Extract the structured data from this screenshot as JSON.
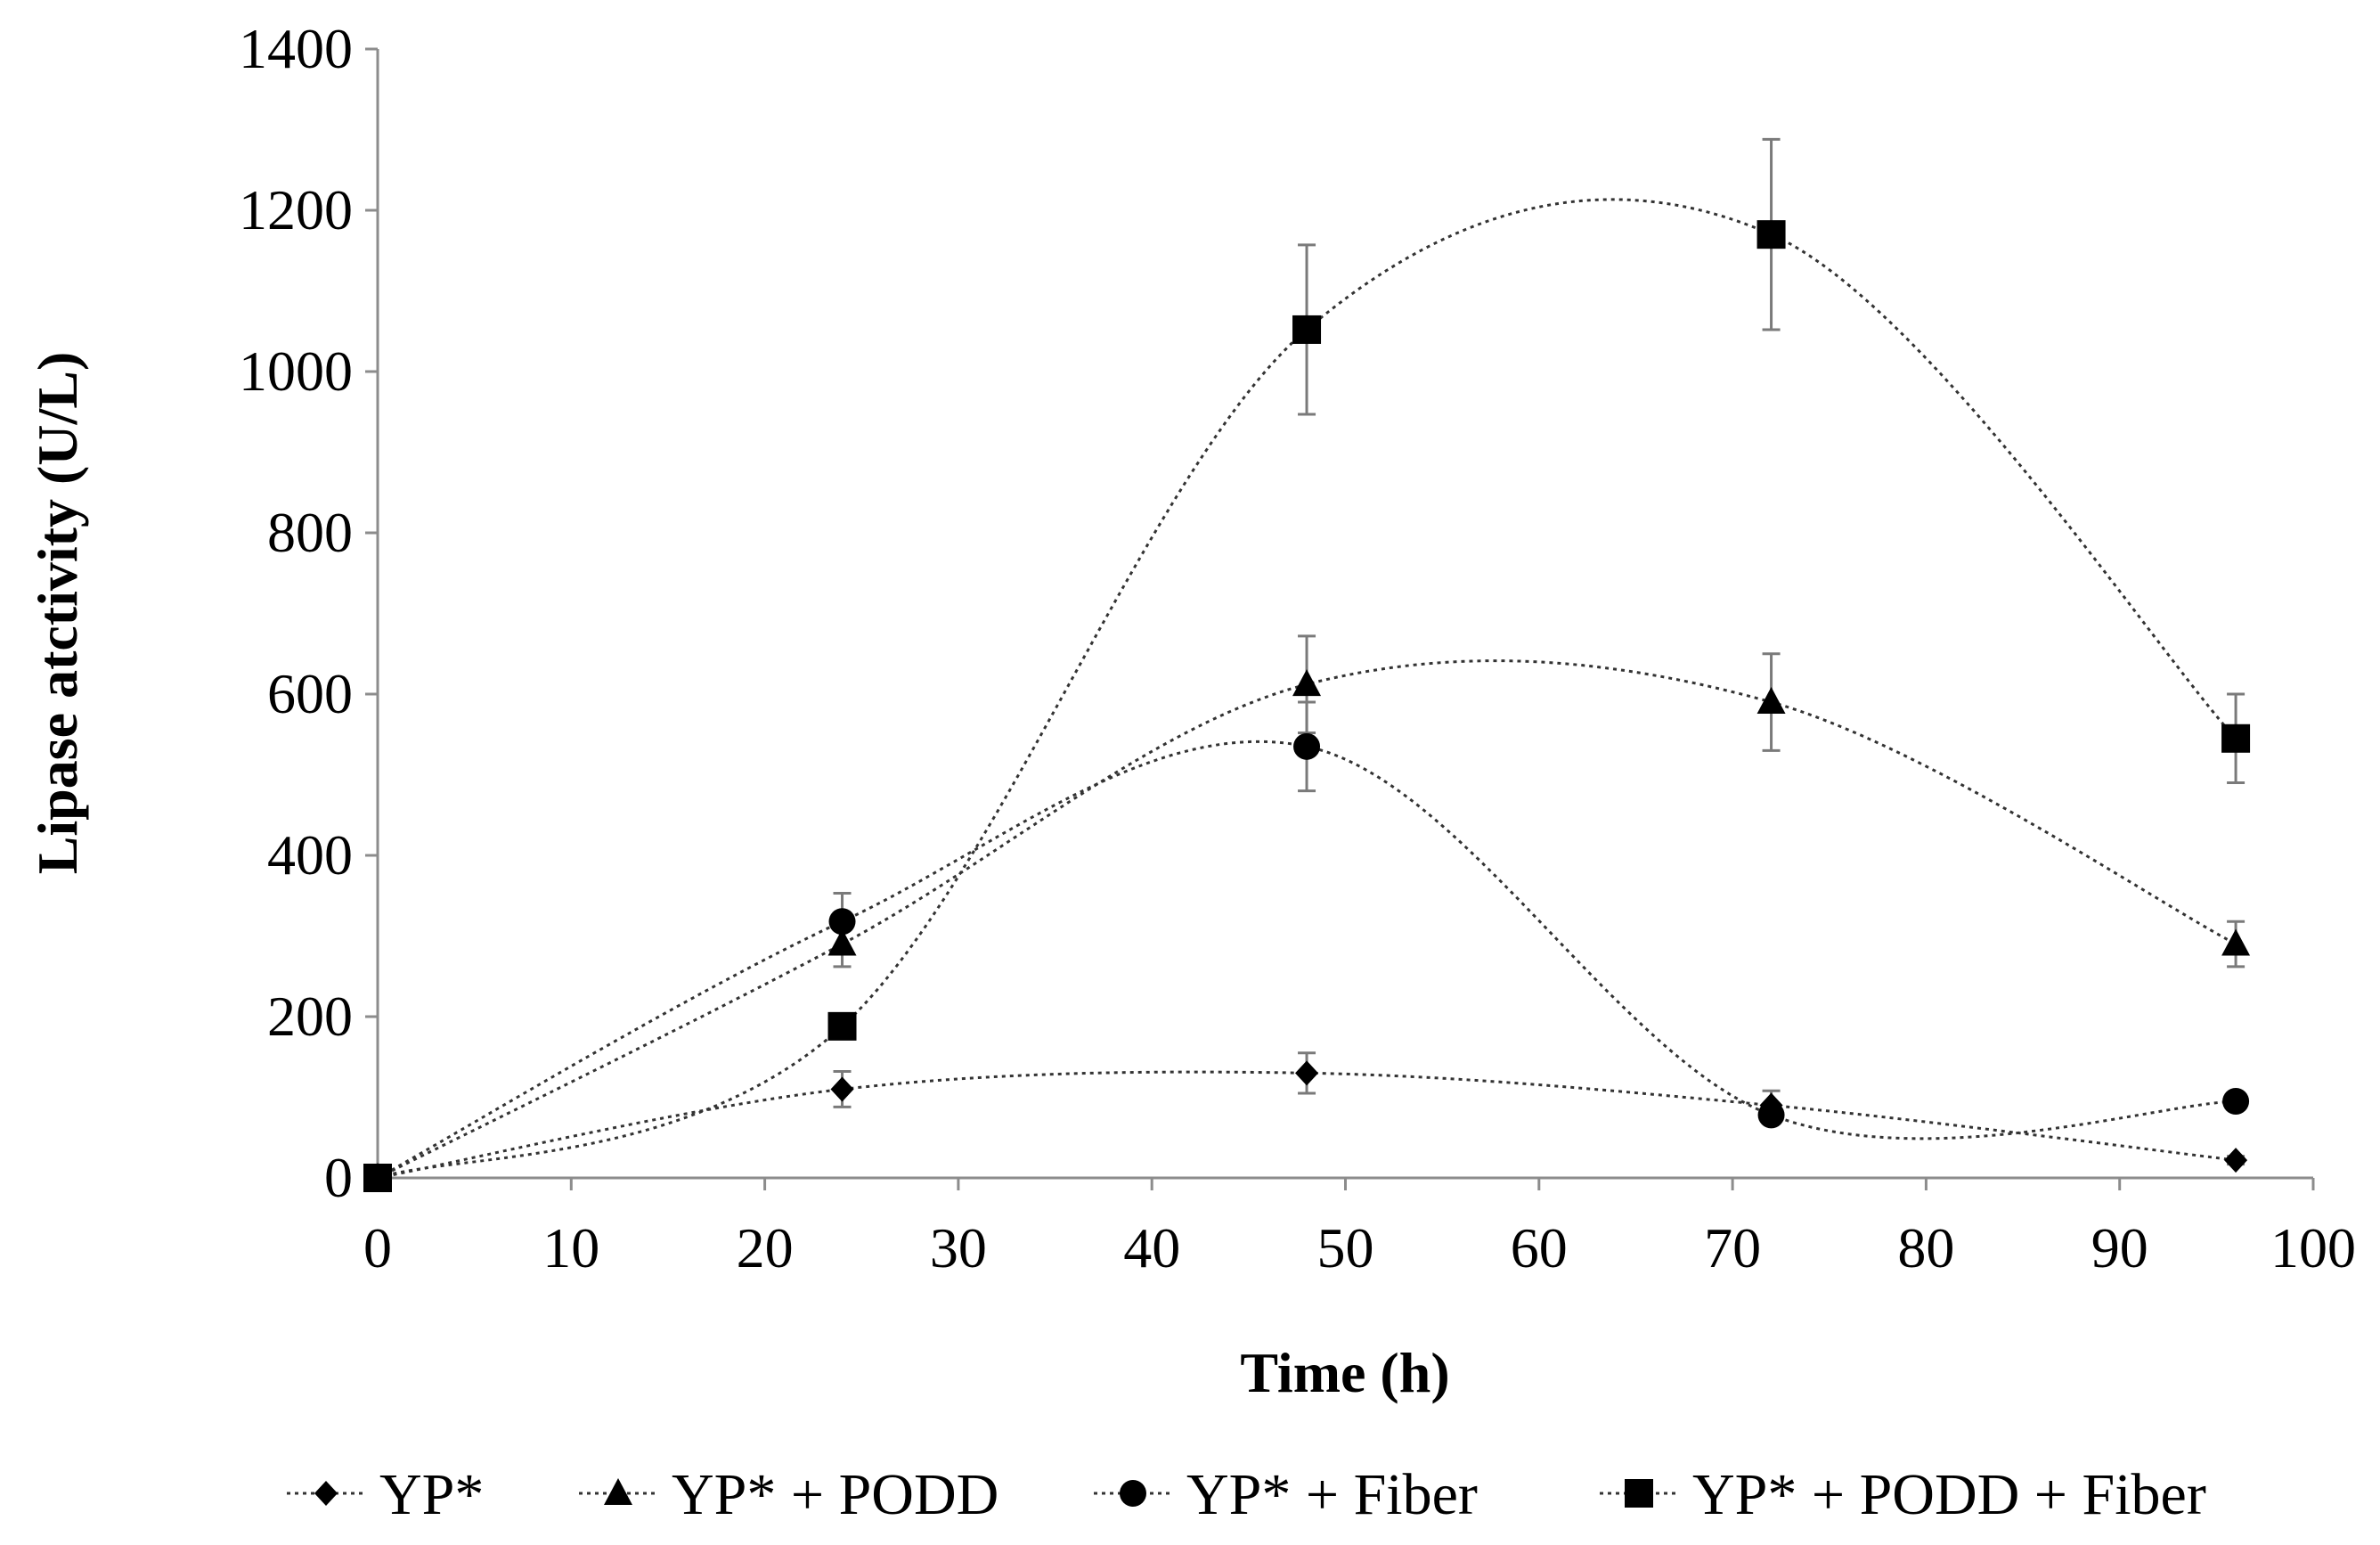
{
  "chart_data": {
    "type": "line",
    "title": "",
    "xlabel": "Time (h)",
    "ylabel": "Lipase atctivity (U/L)",
    "xlim": [
      0,
      100
    ],
    "ylim": [
      0,
      1400
    ],
    "xticks": [
      0,
      10,
      20,
      30,
      40,
      50,
      60,
      70,
      80,
      90,
      100
    ],
    "yticks": [
      0,
      200,
      400,
      600,
      800,
      1000,
      1200,
      1400
    ],
    "grid": false,
    "legend_position": "bottom",
    "line_style": "dotted, smoothed",
    "x": [
      0,
      24,
      48,
      72,
      96
    ],
    "series": [
      {
        "name": "YP*",
        "marker": "diamond",
        "values": [
          0,
          110,
          130,
          90,
          22
        ],
        "errors": [
          0,
          22,
          25,
          18,
          5
        ]
      },
      {
        "name": "YP* + PODD",
        "marker": "triangle",
        "values": [
          0,
          290,
          612,
          590,
          290
        ],
        "errors": [
          0,
          28,
          60,
          60,
          28
        ]
      },
      {
        "name": "YP* + Fiber",
        "marker": "circle",
        "values": [
          0,
          318,
          535,
          78,
          95
        ],
        "errors": [
          0,
          35,
          55,
          10,
          8
        ]
      },
      {
        "name": "YP* + PODD + Fiber",
        "marker": "square",
        "values": [
          0,
          188,
          1052,
          1170,
          545
        ],
        "errors": [
          0,
          15,
          105,
          118,
          55
        ]
      }
    ]
  }
}
